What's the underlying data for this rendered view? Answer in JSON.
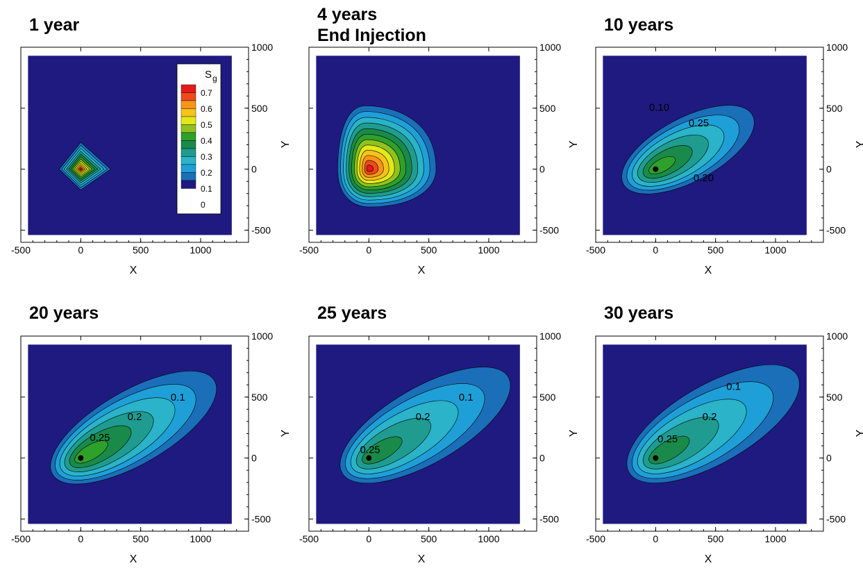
{
  "chart_data": [
    {
      "type": "contour",
      "title": "1 year",
      "xlabel": "X",
      "ylabel": "Y",
      "xlim": [
        -500,
        1400
      ],
      "ylim": [
        -600,
        1000
      ],
      "xticks": [
        "-500",
        "0",
        "500",
        "1000"
      ],
      "yticks": [
        "-500",
        "0",
        "500",
        "1000"
      ],
      "domain": {
        "x": [
          -440,
          1260
        ],
        "y": [
          -540,
          930
        ]
      },
      "plume": {
        "center": [
          0,
          0
        ],
        "peak_level": 0.6,
        "shape": "diamond",
        "reach_east": 250,
        "reach_west": 180,
        "reach_north": 220,
        "reach_south": 170
      },
      "contour_labels": [],
      "well": null,
      "legend": {
        "title": "S",
        "title_sub": "g",
        "levels": [
          "0.7",
          "0.6",
          "0.5",
          "0.4",
          "0.3",
          "0.2",
          "0.1",
          "0"
        ]
      }
    },
    {
      "type": "contour",
      "title": "4 years",
      "subtitle": "End Injection",
      "xlabel": "X",
      "ylabel": "Y",
      "xlim": [
        -500,
        1400
      ],
      "ylim": [
        -600,
        1000
      ],
      "xticks": [
        "-500",
        "0",
        "500",
        "1000"
      ],
      "yticks": [
        "-500",
        "0",
        "500",
        "1000"
      ],
      "domain": {
        "x": [
          -440,
          1260
        ],
        "y": [
          -540,
          930
        ]
      },
      "plume": {
        "center": [
          0,
          0
        ],
        "peak_level": 0.6,
        "shape": "blob",
        "reach_east": 560,
        "reach_west": 260,
        "reach_north": 520,
        "reach_south": 310
      },
      "contour_labels": [],
      "well": null
    },
    {
      "type": "contour",
      "title": "10 years",
      "xlabel": "X",
      "ylabel": "Y",
      "xlim": [
        -500,
        1400
      ],
      "ylim": [
        -600,
        1000
      ],
      "xticks": [
        "-500",
        "0",
        "500",
        "1000"
      ],
      "yticks": [
        "-500",
        "0",
        "500",
        "1000"
      ],
      "domain": {
        "x": [
          -440,
          1260
        ],
        "y": [
          -540,
          930
        ]
      },
      "plume": {
        "center": [
          270,
          160
        ],
        "peak_level": 0.3,
        "shape": "ellipse",
        "tilt": 28,
        "rx": 610,
        "ry": 260
      },
      "contour_labels": [
        {
          "text": "0.10",
          "x": 30,
          "y": 480
        },
        {
          "text": "0.25",
          "x": 360,
          "y": 350
        },
        {
          "text": "0.20",
          "x": 400,
          "y": -100
        }
      ],
      "well": [
        0,
        0
      ]
    },
    {
      "type": "contour",
      "title": "20 years",
      "xlabel": "X",
      "ylabel": "Y",
      "xlim": [
        -500,
        1400
      ],
      "ylim": [
        -600,
        1000
      ],
      "xticks": [
        "-500",
        "0",
        "500",
        "1000"
      ],
      "yticks": [
        "-500",
        "0",
        "500",
        "1000"
      ],
      "domain": {
        "x": [
          -440,
          1260
        ],
        "y": [
          -540,
          930
        ]
      },
      "plume": {
        "center": [
          440,
          250
        ],
        "peak_level": 0.3,
        "shape": "ellipse",
        "tilt": 30,
        "rx": 780,
        "ry": 300
      },
      "contour_labels": [
        {
          "text": "0.1",
          "x": 810,
          "y": 470
        },
        {
          "text": "0.2",
          "x": 450,
          "y": 310
        },
        {
          "text": "0.25",
          "x": 160,
          "y": 140
        }
      ],
      "well": [
        0,
        0
      ]
    },
    {
      "type": "contour",
      "title": "25 years",
      "xlabel": "X",
      "ylabel": "Y",
      "xlim": [
        -500,
        1400
      ],
      "ylim": [
        -600,
        1000
      ],
      "xticks": [
        "-500",
        "0",
        "500",
        "1000"
      ],
      "yticks": [
        "-500",
        "0",
        "500",
        "1000"
      ],
      "domain": {
        "x": [
          -440,
          1260
        ],
        "y": [
          -540,
          930
        ]
      },
      "plume": {
        "center": [
          470,
          270
        ],
        "peak_level": 0.25,
        "shape": "ellipse",
        "tilt": 30,
        "rx": 800,
        "ry": 310
      },
      "contour_labels": [
        {
          "text": "0.1",
          "x": 810,
          "y": 470
        },
        {
          "text": "0.2",
          "x": 450,
          "y": 310
        },
        {
          "text": "0.25",
          "x": 10,
          "y": 40
        }
      ],
      "well": [
        0,
        0
      ]
    },
    {
      "type": "contour",
      "title": "30 years",
      "xlabel": "X",
      "ylabel": "Y",
      "xlim": [
        -500,
        1400
      ],
      "ylim": [
        -600,
        1000
      ],
      "xticks": [
        "-500",
        "0",
        "500",
        "1000"
      ],
      "yticks": [
        "-500",
        "0",
        "500",
        "1000"
      ],
      "domain": {
        "x": [
          -440,
          1260
        ],
        "y": [
          -540,
          930
        ]
      },
      "plume": {
        "center": [
          480,
          280
        ],
        "peak_level": 0.25,
        "shape": "ellipse",
        "tilt": 30,
        "rx": 810,
        "ry": 320
      },
      "contour_labels": [
        {
          "text": "0.1",
          "x": 650,
          "y": 560
        },
        {
          "text": "0.2",
          "x": 450,
          "y": 310
        },
        {
          "text": "0.25",
          "x": 100,
          "y": 130
        }
      ],
      "well": [
        0,
        0
      ]
    }
  ],
  "colors": {
    "background_fill": "#1f1a7f",
    "levels": [
      "#1f1a7f",
      "#1a6fb8",
      "#1f9fd8",
      "#2ab3c9",
      "#1f9c8f",
      "#1a8a4a",
      "#2fa02a",
      "#8fc21f",
      "#e3e81a",
      "#f7c21a",
      "#f7951a",
      "#ef4a1a",
      "#e31a1a"
    ]
  }
}
